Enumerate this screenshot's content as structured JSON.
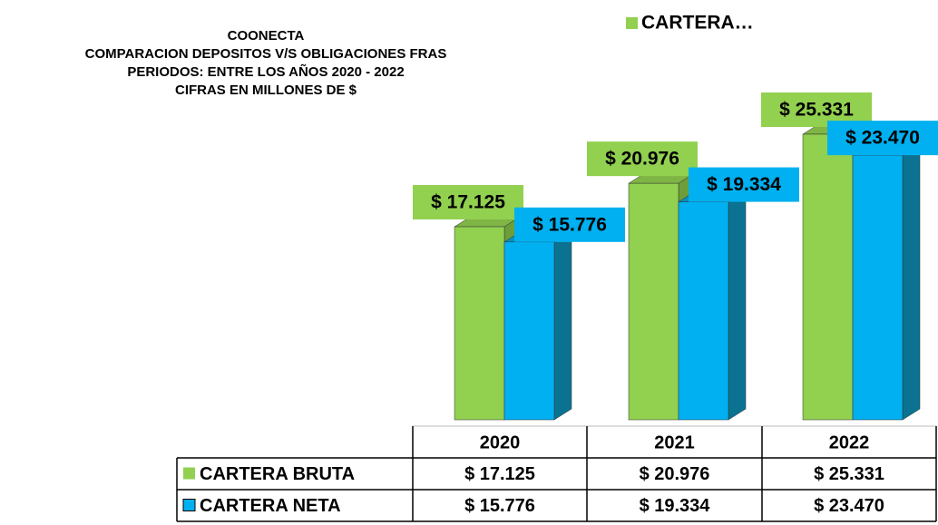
{
  "chart_data": {
    "type": "bar",
    "title": [
      "COONECTA",
      "COMPARACION DEPOSITOS V/S OBLIGACIONES FRAS",
      "PERIODOS: ENTRE LOS AÑOS 2020 - 2022",
      "CIFRAS EN MILLONES DE $"
    ],
    "legend_text": "CARTERA…",
    "categories": [
      "2020",
      "2021",
      "2022"
    ],
    "series": [
      {
        "name": "CARTERA BRUTA",
        "color": "#92d050",
        "values": [
          17125,
          20976,
          25331
        ],
        "value_labels": [
          "$ 17.125",
          "$ 20.976",
          "$ 25.331"
        ]
      },
      {
        "name": "CARTERA NETA",
        "color": "#00b0f0",
        "values": [
          15776,
          19334,
          23470
        ],
        "value_labels": [
          "$ 15.776",
          "$ 19.334",
          "$ 23.470"
        ]
      }
    ]
  }
}
